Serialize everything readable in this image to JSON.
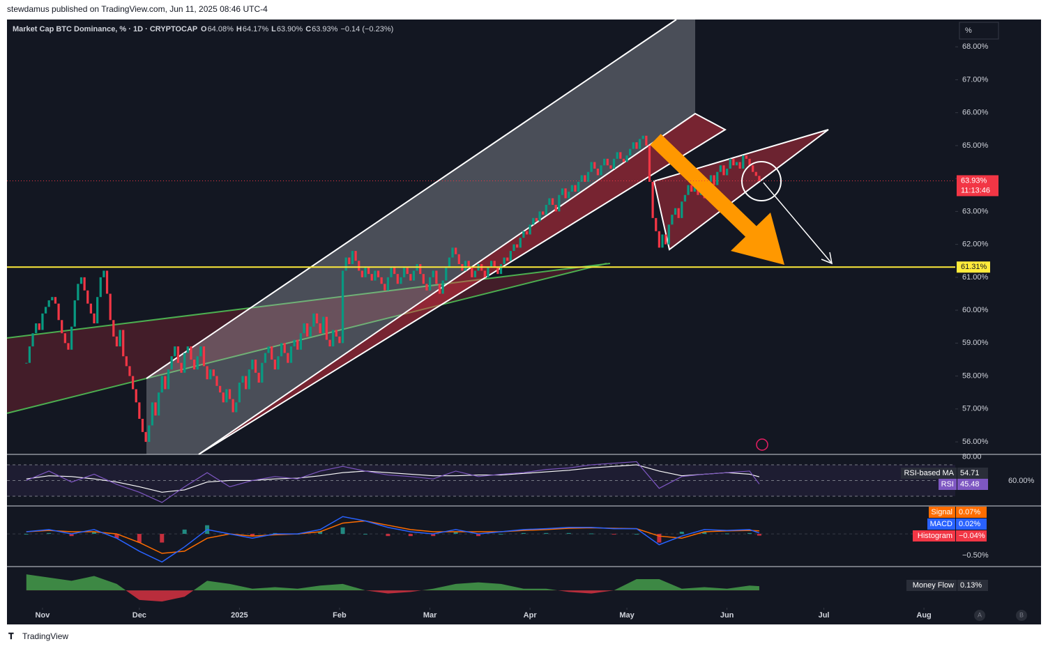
{
  "header": {
    "publisher": "stewdamus published on TradingView.com, Jun 11, 2025 08:46 UTC-4",
    "footer": "TradingView"
  },
  "chart_data": {
    "type": "candlestick",
    "title": "Market Cap BTC Dominance, % · 1D · CRYPTOCAP",
    "legend_items": [
      {
        "key": "O",
        "value": "64.08%"
      },
      {
        "key": "H",
        "value": "64.17%"
      },
      {
        "key": "L",
        "value": "63.90%"
      },
      {
        "key": "C",
        "value": "63.93%"
      }
    ],
    "change": "−0.14 (−0.23%)",
    "unit_button": "%",
    "up_color": "#089981",
    "down_color": "#f23645",
    "values": [
      58.4,
      58.9,
      59.3,
      59.6,
      59.4,
      59.9,
      60.1,
      60.3,
      60.4,
      60.2,
      59.7,
      59.3,
      59.0,
      58.8,
      59.5,
      60.3,
      60.8,
      61.0,
      60.6,
      60.2,
      59.9,
      59.6,
      60.4,
      61.0,
      61.2,
      60.5,
      59.7,
      59.2,
      58.9,
      59.4,
      58.6,
      58.3,
      58.0,
      57.6,
      57.2,
      56.7,
      56.3,
      56.0,
      56.5,
      57.2,
      56.8,
      57.5,
      58.0,
      57.6,
      58.2,
      58.6,
      58.9,
      58.4,
      58.1,
      58.7,
      58.9,
      58.5,
      58.2,
      58.6,
      58.9,
      58.3,
      57.9,
      58.2,
      58.0,
      57.7,
      57.5,
      57.2,
      57.6,
      57.3,
      56.9,
      57.2,
      57.8,
      58.0,
      57.6,
      58.2,
      58.5,
      58.1,
      57.8,
      58.4,
      58.7,
      58.9,
      58.5,
      58.2,
      58.6,
      59.0,
      58.7,
      58.4,
      58.9,
      59.1,
      58.8,
      59.3,
      59.6,
      59.2,
      59.5,
      59.9,
      59.6,
      59.3,
      59.8,
      59.1,
      58.9,
      59.4,
      59.2,
      59.0,
      61.2,
      61.6,
      61.4,
      61.8,
      61.5,
      61.2,
      61.0,
      61.3,
      61.1,
      60.9,
      61.2,
      61.0,
      60.8,
      60.6,
      61.0,
      61.3,
      61.1,
      60.8,
      61.0,
      61.3,
      61.1,
      60.9,
      61.2,
      61.4,
      61.1,
      60.8,
      60.6,
      61.0,
      61.2,
      60.8,
      60.5,
      60.9,
      61.3,
      61.6,
      61.9,
      61.7,
      61.4,
      61.2,
      61.5,
      61.3,
      61.0,
      61.2,
      61.4,
      61.2,
      61.0,
      61.3,
      61.5,
      61.3,
      61.1,
      61.4,
      61.6,
      61.5,
      61.8,
      62.0,
      61.9,
      62.2,
      62.4,
      62.3,
      62.6,
      62.8,
      62.7,
      63.0,
      62.9,
      63.2,
      63.4,
      63.2,
      63.0,
      63.5,
      63.7,
      63.4,
      63.6,
      63.8,
      63.6,
      63.9,
      64.1,
      63.9,
      64.2,
      64.5,
      64.3,
      64.1,
      64.4,
      64.6,
      64.4,
      64.3,
      64.6,
      64.8,
      64.6,
      64.5,
      64.7,
      64.9,
      65.1,
      64.9,
      65.2,
      65.3,
      65.0,
      63.9,
      62.8,
      62.4,
      61.9,
      62.3,
      62.0,
      62.6,
      62.9,
      63.1,
      62.8,
      63.3,
      63.5,
      63.8,
      63.6,
      63.9,
      63.5,
      63.7,
      63.4,
      63.9,
      64.1,
      63.8,
      64.2,
      64.4,
      64.1,
      64.3,
      64.6,
      64.4,
      64.5,
      64.3,
      64.7,
      64.6,
      64.4,
      64.2,
      64.08,
      63.93
    ],
    "xlim": [
      -6,
      287.7
    ],
    "xticks": [
      {
        "value": 5,
        "label": "Nov"
      },
      {
        "value": 35,
        "label": "Dec"
      },
      {
        "value": 66,
        "label": "2025"
      },
      {
        "value": 97,
        "label": "Feb"
      },
      {
        "value": 125,
        "label": "Mar"
      },
      {
        "value": 156,
        "label": "Apr"
      },
      {
        "value": 186,
        "label": "May"
      },
      {
        "value": 217,
        "label": "Jun"
      },
      {
        "value": 247,
        "label": "Jul"
      },
      {
        "value": 278,
        "label": "Aug"
      }
    ],
    "ylim": [
      55.62,
      68.83
    ],
    "yticks": [
      {
        "value": 56,
        "label": "56.00%"
      },
      {
        "value": 57,
        "label": "57.00%"
      },
      {
        "value": 58,
        "label": "58.00%"
      },
      {
        "value": 59,
        "label": "59.00%"
      },
      {
        "value": 60,
        "label": "60.00%"
      },
      {
        "value": 61,
        "label": "61.00%"
      },
      {
        "value": 62,
        "label": "62.00%"
      },
      {
        "value": 63,
        "label": "63.00%"
      },
      {
        "value": 64,
        "label": "64.00%"
      },
      {
        "value": 65,
        "label": "65.00%"
      },
      {
        "value": 66,
        "label": "66.00%"
      },
      {
        "value": 67,
        "label": "67.00%"
      },
      {
        "value": 68,
        "label": "68.00%"
      }
    ],
    "last_price": {
      "value": 63.93,
      "label": "63.93%",
      "countdown": "11:13:46",
      "color": "#f23645"
    },
    "hline": {
      "value": 61.31,
      "label": "61.31%",
      "color": "#ffeb3b"
    },
    "panel_buttons": [
      "A",
      "B"
    ],
    "rsi": {
      "x": [
        0,
        7,
        14,
        21,
        28,
        35,
        42,
        49,
        56,
        63,
        70,
        77,
        84,
        91,
        98,
        105,
        112,
        119,
        126,
        133,
        140,
        147,
        154,
        161,
        168,
        175,
        182,
        189,
        196,
        203,
        210,
        217,
        224,
        227
      ],
      "ylim": [
        18.4,
        82.4
      ],
      "yticks": [
        {
          "value": 80,
          "label": "80.00"
        }
      ],
      "levels": [
        70,
        50,
        30
      ],
      "overlay_label": "60.00%",
      "series": [
        {
          "name": "RSI-based MA",
          "color": "#ffffff",
          "values": [
            52,
            56,
            55,
            52,
            48,
            42,
            35,
            38,
            48,
            50,
            50,
            52,
            53,
            56,
            60,
            62,
            60,
            58,
            56,
            56,
            57,
            57,
            59,
            61,
            63,
            66,
            68,
            70,
            62,
            56,
            58,
            60,
            58,
            54.71
          ]
        },
        {
          "name": "RSI",
          "color": "#7e57c2",
          "values": [
            50,
            62,
            48,
            58,
            45,
            35,
            22,
            42,
            60,
            42,
            50,
            55,
            52,
            62,
            68,
            62,
            57,
            55,
            52,
            62,
            55,
            58,
            60,
            64,
            66,
            70,
            72,
            74,
            40,
            55,
            58,
            60,
            62,
            45.48
          ]
        }
      ]
    },
    "macd": {
      "x": [
        0,
        7,
        14,
        21,
        28,
        35,
        42,
        49,
        56,
        63,
        70,
        77,
        84,
        91,
        98,
        105,
        112,
        119,
        126,
        133,
        140,
        147,
        154,
        161,
        168,
        175,
        182,
        189,
        196,
        203,
        210,
        217,
        224,
        227
      ],
      "ylim": [
        -0.74,
        0.63
      ],
      "yticks": [
        {
          "value": -0.5,
          "label": "−0.50%"
        }
      ],
      "series": [
        {
          "name": "Signal",
          "color": "#ff6d00",
          "value_label": "0.07%",
          "values": [
            0.05,
            0.08,
            0.05,
            0.05,
            0,
            -0.2,
            -0.45,
            -0.4,
            -0.1,
            0,
            -0.05,
            -0.02,
            0,
            0.05,
            0.25,
            0.3,
            0.2,
            0.1,
            0.05,
            0.05,
            0.05,
            0.05,
            0.08,
            0.1,
            0.13,
            0.14,
            0.13,
            0.12,
            -0.05,
            -0.1,
            0.05,
            0.07,
            0.08,
            0.07
          ]
        },
        {
          "name": "MACD",
          "color": "#2962ff",
          "value_label": "0.02%",
          "values": [
            0.05,
            0.1,
            0,
            0.1,
            -0.1,
            -0.4,
            -0.65,
            -0.3,
            0.1,
            0,
            -0.1,
            0,
            0,
            0.1,
            0.4,
            0.3,
            0.15,
            0.05,
            0,
            0.1,
            0,
            0.05,
            0.1,
            0.12,
            0.15,
            0.15,
            0.12,
            0.12,
            -0.25,
            -0.05,
            0.1,
            0.08,
            0.1,
            0.02
          ]
        },
        {
          "name": "Histogram",
          "color": "#f23645",
          "value_label": "−0.04%",
          "values": [
            0,
            0.02,
            -0.05,
            0.05,
            -0.1,
            -0.2,
            -0.2,
            0.1,
            0.2,
            0,
            -0.05,
            0.02,
            0,
            0.05,
            0.15,
            0,
            -0.05,
            -0.05,
            -0.05,
            0.05,
            -0.05,
            0,
            0.02,
            0.02,
            0.02,
            0.01,
            -0.01,
            0,
            -0.2,
            0.05,
            0.05,
            0.01,
            0.02,
            -0.04
          ]
        }
      ]
    },
    "money_flow": {
      "name": "Money Flow",
      "value_label": "0.13%",
      "ylim": [
        -0.5,
        0.7
      ],
      "x": [
        0,
        7,
        14,
        21,
        28,
        35,
        42,
        49,
        56,
        63,
        70,
        77,
        84,
        91,
        98,
        105,
        112,
        119,
        126,
        133,
        140,
        147,
        154,
        161,
        168,
        175,
        182,
        189,
        196,
        203,
        210,
        217,
        224,
        227
      ],
      "values": [
        0.5,
        0.4,
        0.3,
        0.45,
        0.2,
        -0.3,
        -0.35,
        -0.2,
        0.3,
        0.2,
        0.05,
        0.1,
        0.05,
        0.15,
        0.2,
        0,
        -0.1,
        -0.05,
        0.05,
        0.2,
        0.25,
        0.2,
        0.05,
        0.05,
        -0.05,
        -0.1,
        0,
        0.35,
        0.35,
        0.05,
        0.1,
        0.05,
        0.15,
        0.13
      ]
    }
  }
}
